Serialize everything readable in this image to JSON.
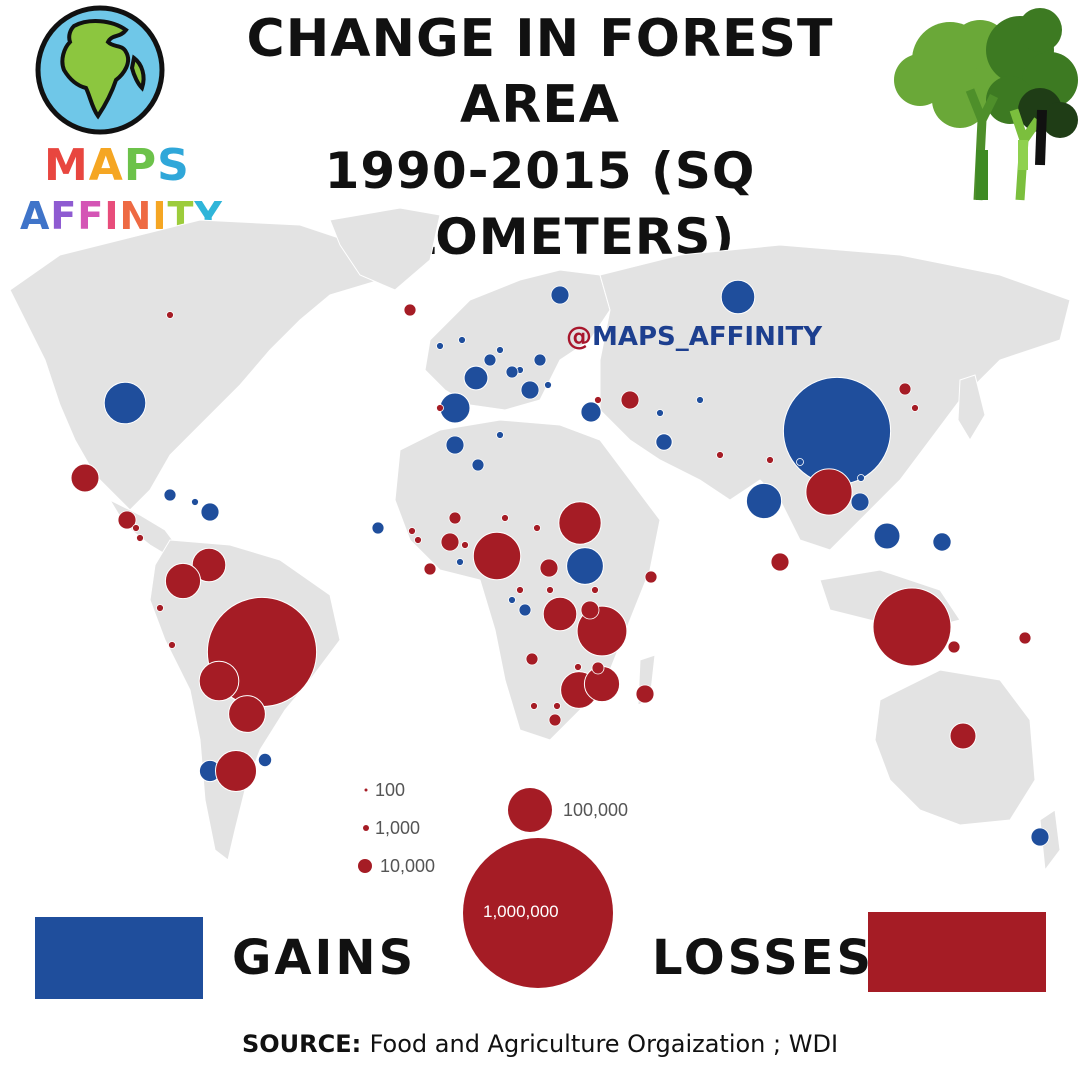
{
  "title": {
    "line1": "CHANGE IN FOREST AREA",
    "line2": "1990-2015 (SQ KILOMETERS)"
  },
  "logo": {
    "maps_letters": [
      "M",
      "A",
      "P",
      "S"
    ],
    "maps_colors": [
      "#e8463f",
      "#f5a623",
      "#6cc24a",
      "#2fa7d9"
    ],
    "affinity_letters": [
      "A",
      "F",
      "F",
      "I",
      "N",
      "I",
      "T",
      "Y"
    ],
    "affinity_colors": [
      "#3f74c9",
      "#8e5bd1",
      "#d455b5",
      "#e84d7b",
      "#ee6a43",
      "#f5a623",
      "#9ccc3b",
      "#2fb5d9"
    ]
  },
  "watermark": {
    "at": "@",
    "text": "MAPS_AFFINITY"
  },
  "colors": {
    "gains": "#1f4e9c",
    "losses": "#a51c25",
    "land": "#e3e3e3",
    "land_border": "#ffffff"
  },
  "size_legend": [
    {
      "value": "100"
    },
    {
      "value": "1,000"
    },
    {
      "value": "10,000"
    },
    {
      "value": "100,000"
    },
    {
      "value": "1,000,000"
    }
  ],
  "key": {
    "gains_label": "GAINS",
    "losses_label": "LOSSES"
  },
  "source": {
    "label": "SOURCE:",
    "text": "Food and Agriculture Orgaization ; WDI"
  },
  "map_data": {
    "type": "proportional-symbol-map",
    "units": "sq km",
    "gains": [
      {
        "region": "Russia",
        "value": 50000
      },
      {
        "region": "China",
        "value": 510000
      },
      {
        "region": "United States",
        "value": 77000
      },
      {
        "region": "India",
        "value": 55000
      },
      {
        "region": "Spain",
        "value": 40000
      },
      {
        "region": "France",
        "value": 25000
      },
      {
        "region": "Sudan",
        "value": 60000
      },
      {
        "region": "Vietnam",
        "value": 30000
      },
      {
        "region": "Philippines",
        "value": 15000
      },
      {
        "region": "Chile",
        "value": 20000
      },
      {
        "region": "Uruguay",
        "value": 8000
      },
      {
        "region": "Turkey",
        "value": 18000
      },
      {
        "region": "Iran",
        "value": 12000
      }
    ],
    "losses": [
      {
        "region": "Brazil",
        "value": 530000
      },
      {
        "region": "Indonesia",
        "value": 270000
      },
      {
        "region": "Myanmar",
        "value": 95000
      },
      {
        "region": "Nigeria",
        "value": 100000
      },
      {
        "region": "Tanzania",
        "value": 110000
      },
      {
        "region": "Argentina",
        "value": 75000
      },
      {
        "region": "Bolivia",
        "value": 70000
      },
      {
        "region": "Venezuela",
        "value": 50000
      },
      {
        "region": "DR Congo",
        "value": 80000
      },
      {
        "region": "Zimbabwe",
        "value": 60000
      },
      {
        "region": "Australia",
        "value": 30000
      },
      {
        "region": "Mexico",
        "value": 35000
      },
      {
        "region": "Paraguay",
        "value": 60000
      },
      {
        "region": "Mozambique",
        "value": 55000
      },
      {
        "region": "Zambia",
        "value": 50000
      },
      {
        "region": "Colombia",
        "value": 55000
      }
    ]
  }
}
